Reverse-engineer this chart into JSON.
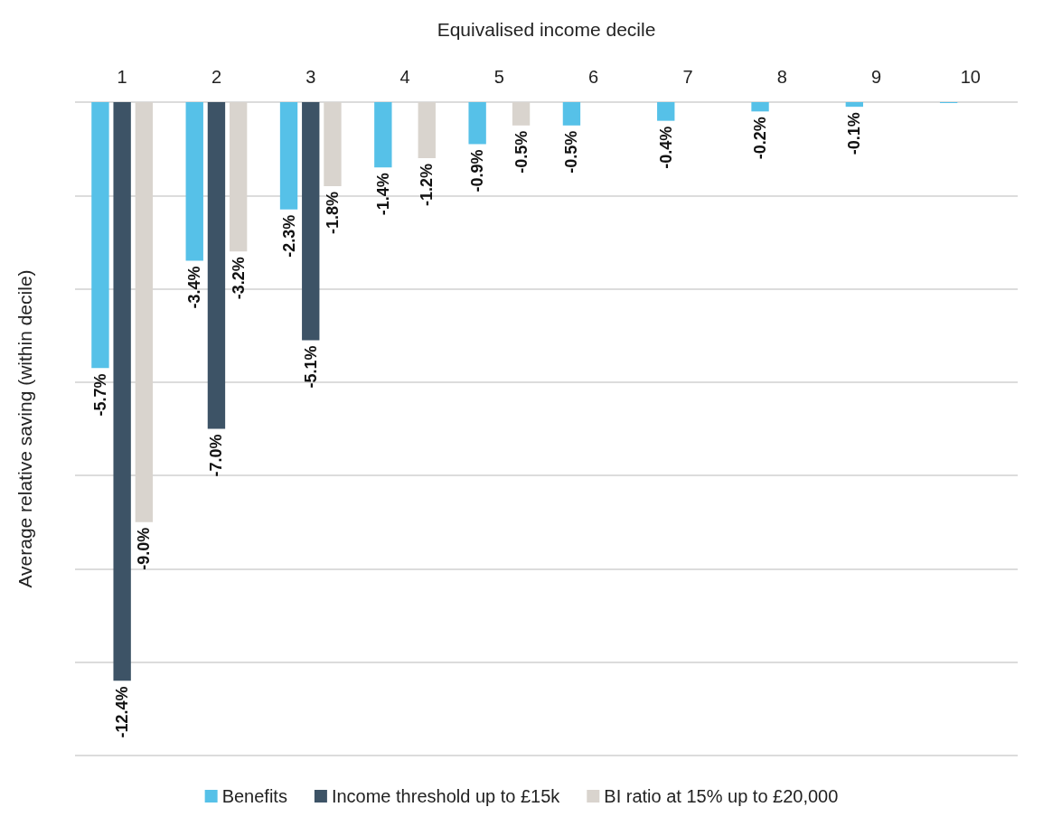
{
  "chart_data": {
    "type": "bar",
    "xlabel": "Equivalised income decile",
    "ylabel": "Average relative saving (within decile)",
    "categories": [
      "1",
      "2",
      "3",
      "4",
      "5",
      "6",
      "7",
      "8",
      "9",
      "10"
    ],
    "ylim": [
      -14,
      0
    ],
    "yticks": [
      {
        "value": -14,
        "label": null
      },
      {
        "value": -12,
        "label": null
      },
      {
        "value": -10,
        "label": null
      },
      {
        "value": -8,
        "label": null
      },
      {
        "value": -6,
        "label": null
      },
      {
        "value": -4,
        "label": null
      },
      {
        "value": -2,
        "label": null
      },
      {
        "value": 0,
        "label": null
      }
    ],
    "grid": "y",
    "legend": "bottom",
    "tick_labels": "x",
    "series": [
      {
        "name": "Benefits",
        "color": "#56c1e8",
        "values": [
          -5.7,
          -3.4,
          -2.3,
          -1.4,
          -0.9,
          -0.5,
          -0.4,
          -0.2,
          -0.1,
          -0.02
        ],
        "value_labels": [
          "-5.7%",
          "-3.4%",
          "-2.3%",
          "-1.4%",
          "-0.9%",
          "-0.5%",
          "-0.4%",
          "-0.2%",
          "-0.1%",
          null
        ]
      },
      {
        "name": "Income threshold up to £15k",
        "color": "#3d5366",
        "values": [
          -12.4,
          -7.0,
          -5.1,
          null,
          null,
          null,
          null,
          null,
          null,
          null
        ],
        "value_labels": [
          "-12.4%",
          "-7.0%",
          "-5.1%",
          null,
          null,
          null,
          null,
          null,
          null,
          null
        ]
      },
      {
        "name": "BI ratio at 15% up to £20,000",
        "color": "#d9d4ce",
        "values": [
          -9.0,
          -3.2,
          -1.8,
          -1.2,
          -0.5,
          null,
          null,
          null,
          null,
          null
        ],
        "value_labels": [
          "-9.0%",
          "-3.2%",
          "-1.8%",
          "-1.2%",
          "-0.5%",
          null,
          null,
          null,
          null,
          null
        ]
      }
    ]
  }
}
